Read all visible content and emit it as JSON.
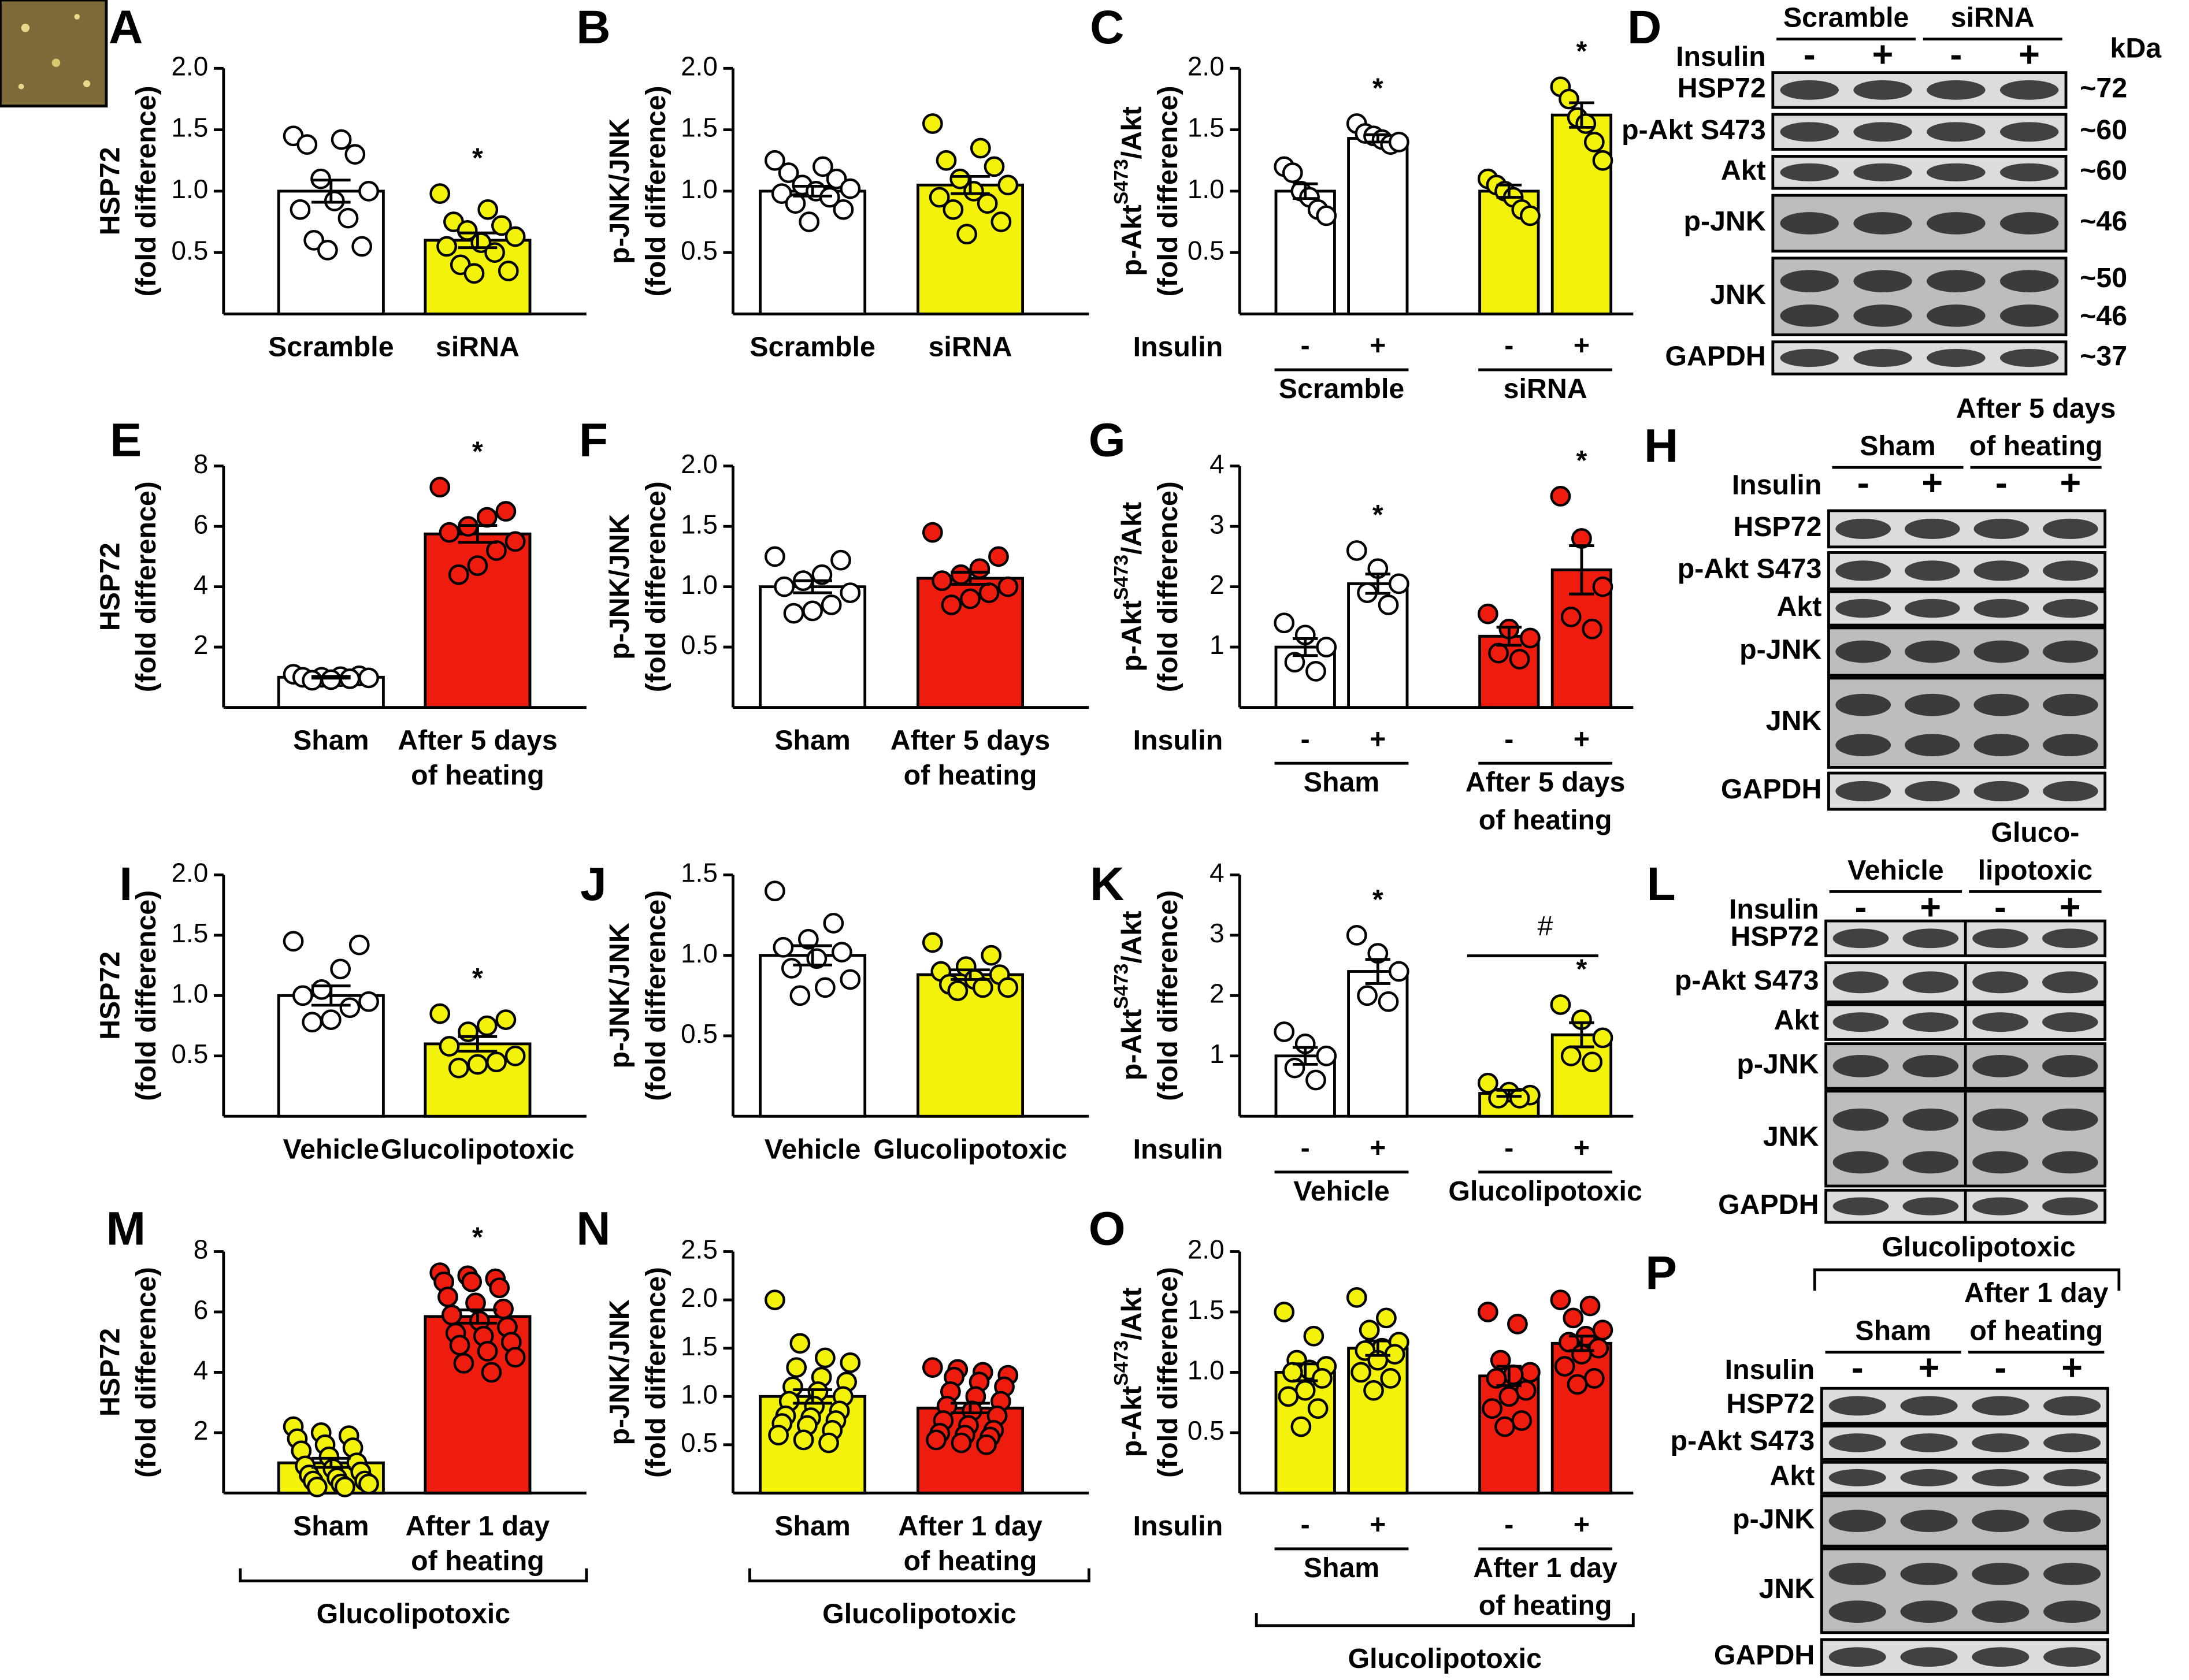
{
  "chart_data": [
    {
      "type": "bar",
      "panel": "A",
      "ylabel": [
        "HSP72",
        "(fold difference)"
      ],
      "ylim": [
        0,
        2
      ],
      "yticks": [
        0.5,
        {
          "value": 1,
          "label": "1.0"
        },
        1.5,
        {
          "value": 2,
          "label": "2.0"
        }
      ],
      "categories": [
        [
          "Scramble"
        ],
        [
          "siRNA"
        ]
      ],
      "bars": [
        {
          "value": 1.0,
          "sem": 0.09,
          "color": "#ffffff",
          "points": [
            1.45,
            1.42,
            1.38,
            1.3,
            1.1,
            1.0,
            0.92,
            0.85,
            0.78,
            0.6,
            0.55,
            0.52
          ]
        },
        {
          "value": 0.6,
          "sem": 0.06,
          "color": "#f2f20a",
          "points": [
            0.98,
            0.85,
            0.75,
            0.72,
            0.68,
            0.63,
            0.58,
            0.55,
            0.5,
            0.4,
            0.35,
            0.33
          ],
          "mark": "*"
        }
      ]
    },
    {
      "type": "bar",
      "panel": "B",
      "ylabel": [
        "p-JNK/JNK",
        "(fold difference)"
      ],
      "ylim": [
        0,
        2
      ],
      "yticks": [
        0.5,
        {
          "value": 1,
          "label": "1.0"
        },
        1.5,
        {
          "value": 2,
          "label": "2.0"
        }
      ],
      "categories": [
        [
          "Scramble"
        ],
        [
          "siRNA"
        ]
      ],
      "bars": [
        {
          "value": 1.0,
          "sem": 0.04,
          "color": "#ffffff",
          "points": [
            1.25,
            1.2,
            1.15,
            1.1,
            1.05,
            1.02,
            1.0,
            0.98,
            0.95,
            0.9,
            0.85,
            0.75
          ]
        },
        {
          "value": 1.05,
          "sem": 0.07,
          "color": "#f2f20a",
          "points": [
            1.55,
            1.35,
            1.25,
            1.2,
            1.1,
            1.05,
            1.0,
            0.95,
            0.9,
            0.85,
            0.75,
            0.65
          ]
        }
      ]
    },
    {
      "type": "bar",
      "panel": "C",
      "ylabel": [
        {
          "text": "p-Akt",
          "sup": "S473",
          "after": "/Akt"
        },
        "(fold difference)"
      ],
      "ylim": [
        0,
        2
      ],
      "yticks": [
        0.5,
        {
          "value": 1,
          "label": "1.0"
        },
        1.5,
        {
          "value": 2,
          "label": "2.0"
        }
      ],
      "insulin_label": "Insulin",
      "insulin": [
        "-",
        "+",
        "-",
        "+"
      ],
      "groups": [
        [
          "Scramble"
        ],
        [
          "siRNA"
        ]
      ],
      "bars": [
        {
          "value": 1.0,
          "sem": 0.06,
          "color": "#ffffff",
          "points": [
            1.2,
            1.15,
            1.0,
            0.95,
            0.85,
            0.8
          ]
        },
        {
          "value": 1.43,
          "sem": 0.03,
          "color": "#ffffff",
          "points": [
            1.55,
            1.47,
            1.45,
            1.42,
            1.38,
            1.4
          ],
          "mark": "*"
        },
        {
          "value": 1.0,
          "sem": 0.05,
          "color": "#f2f20a",
          "points": [
            1.1,
            1.05,
            1.0,
            0.95,
            0.85,
            0.8
          ]
        },
        {
          "value": 1.62,
          "sem": 0.1,
          "color": "#f2f20a",
          "points": [
            1.85,
            1.75,
            1.6,
            1.55,
            1.4,
            1.25
          ],
          "mark": "*"
        }
      ]
    },
    {
      "type": "bar",
      "panel": "E",
      "ylabel": [
        "HSP72",
        "(fold difference)"
      ],
      "ylim": [
        0,
        8
      ],
      "yticks": [
        2,
        4,
        6,
        8
      ],
      "categories": [
        [
          "Sham"
        ],
        [
          "After 5 days",
          "of heating"
        ]
      ],
      "bars": [
        {
          "value": 1.0,
          "sem": 0.03,
          "color": "#ffffff",
          "points": [
            1.1,
            1.05,
            1.02,
            1.0,
            1.0,
            0.98,
            0.95,
            0.92,
            0.9
          ]
        },
        {
          "value": 5.75,
          "sem": 0.28,
          "color": "#ee1c0e",
          "points": [
            7.3,
            6.5,
            6.3,
            6.0,
            5.8,
            5.5,
            5.2,
            4.7,
            4.4
          ],
          "mark": "*"
        }
      ]
    },
    {
      "type": "bar",
      "panel": "F",
      "ylabel": [
        "p-JNK/JNK",
        "(fold difference)"
      ],
      "ylim": [
        0,
        2
      ],
      "yticks": [
        0.5,
        {
          "value": 1,
          "label": "1.0"
        },
        1.5,
        {
          "value": 2,
          "label": "2.0"
        }
      ],
      "categories": [
        [
          "Sham"
        ],
        [
          "After 5 days",
          "of heating"
        ]
      ],
      "bars": [
        {
          "value": 1.0,
          "sem": 0.05,
          "color": "#ffffff",
          "points": [
            1.25,
            1.22,
            1.1,
            1.05,
            1.0,
            0.95,
            0.85,
            0.8,
            0.78
          ]
        },
        {
          "value": 1.07,
          "sem": 0.05,
          "color": "#ee1c0e",
          "points": [
            1.45,
            1.25,
            1.15,
            1.1,
            1.05,
            1.0,
            0.95,
            0.9,
            0.85
          ]
        }
      ]
    },
    {
      "type": "bar",
      "panel": "G",
      "ylabel": [
        {
          "text": "p-Akt",
          "sup": "S473",
          "after": "/Akt"
        },
        "(fold difference)"
      ],
      "ylim": [
        0,
        4
      ],
      "yticks": [
        1,
        2,
        3,
        4
      ],
      "insulin_label": "Insulin",
      "insulin": [
        "-",
        "+",
        "-",
        "+"
      ],
      "groups": [
        [
          "Sham"
        ],
        [
          "After 5 days",
          "of heating"
        ]
      ],
      "bars": [
        {
          "value": 1.0,
          "sem": 0.14,
          "color": "#ffffff",
          "points": [
            1.4,
            1.2,
            1.0,
            0.75,
            0.6
          ]
        },
        {
          "value": 2.05,
          "sem": 0.16,
          "color": "#ffffff",
          "points": [
            2.6,
            2.3,
            2.05,
            1.9,
            1.7
          ],
          "mark": "*"
        },
        {
          "value": 1.18,
          "sem": 0.15,
          "color": "#ee1c0e",
          "points": [
            1.55,
            1.3,
            1.15,
            0.9,
            0.8
          ]
        },
        {
          "value": 2.28,
          "sem": 0.4,
          "color": "#ee1c0e",
          "points": [
            3.5,
            2.8,
            2.0,
            1.5,
            1.3
          ],
          "mark": "*"
        }
      ]
    },
    {
      "type": "bar",
      "panel": "I",
      "ylabel": [
        "HSP72",
        "(fold difference)"
      ],
      "ylim": [
        0,
        2
      ],
      "yticks": [
        0.5,
        {
          "value": 1,
          "label": "1.0"
        },
        1.5,
        {
          "value": 2,
          "label": "2.0"
        }
      ],
      "categories": [
        [
          "Vehicle"
        ],
        [
          "Glucolipotoxic"
        ]
      ],
      "bars": [
        {
          "value": 1.0,
          "sem": 0.08,
          "color": "#ffffff",
          "points": [
            1.45,
            1.42,
            1.22,
            1.05,
            1.0,
            0.95,
            0.9,
            0.8,
            0.78
          ]
        },
        {
          "value": 0.6,
          "sem": 0.06,
          "color": "#f2f20a",
          "points": [
            0.85,
            0.8,
            0.75,
            0.7,
            0.58,
            0.5,
            0.45,
            0.43,
            0.4
          ],
          "mark": "*"
        }
      ]
    },
    {
      "type": "bar",
      "panel": "J",
      "ylabel": [
        "p-JNK/JNK",
        "(fold difference)"
      ],
      "ylim": [
        0,
        1.5
      ],
      "yticks": [
        0.5,
        {
          "value": 1,
          "label": "1.0"
        },
        1.5
      ],
      "categories": [
        [
          "Vehicle"
        ],
        [
          "Glucolipotoxic"
        ]
      ],
      "bars": [
        {
          "value": 1.0,
          "sem": 0.06,
          "color": "#ffffff",
          "points": [
            1.4,
            1.2,
            1.1,
            1.05,
            1.02,
            0.98,
            0.92,
            0.85,
            0.8,
            0.75
          ]
        },
        {
          "value": 0.88,
          "sem": 0.03,
          "color": "#f2f20a",
          "points": [
            1.08,
            1.0,
            0.93,
            0.9,
            0.88,
            0.85,
            0.82,
            0.8,
            0.8,
            0.78
          ]
        }
      ]
    },
    {
      "type": "bar",
      "panel": "K",
      "ylabel": [
        {
          "text": "p-Akt",
          "sup": "S473",
          "after": "/Akt"
        },
        "(fold difference)"
      ],
      "ylim": [
        0,
        4
      ],
      "yticks": [
        1,
        2,
        3,
        4
      ],
      "insulin_label": "Insulin",
      "insulin": [
        "-",
        "+",
        "-",
        "+"
      ],
      "groups": [
        [
          "Vehicle"
        ],
        [
          "Glucolipotoxic"
        ]
      ],
      "comparison": "#",
      "bars": [
        {
          "value": 1.0,
          "sem": 0.14,
          "color": "#ffffff",
          "points": [
            1.4,
            1.2,
            1.0,
            0.8,
            0.6
          ]
        },
        {
          "value": 2.4,
          "sem": 0.2,
          "color": "#ffffff",
          "points": [
            3.0,
            2.7,
            2.4,
            2.0,
            1.9
          ],
          "mark": "*"
        },
        {
          "value": 0.38,
          "sem": 0.05,
          "color": "#f2f20a",
          "points": [
            0.55,
            0.4,
            0.35,
            0.3,
            0.3
          ]
        },
        {
          "value": 1.35,
          "sem": 0.2,
          "color": "#f2f20a",
          "points": [
            1.85,
            1.6,
            1.3,
            1.0,
            0.9
          ],
          "mark": "*"
        }
      ]
    },
    {
      "type": "bar",
      "panel": "M",
      "ylabel": [
        "HSP72",
        "(fold difference)"
      ],
      "ylim": [
        0,
        8
      ],
      "yticks": [
        2,
        4,
        6,
        8
      ],
      "categories": [
        [
          "Sham"
        ],
        [
          "After 1 day",
          "of heating"
        ]
      ],
      "bracket_label": "Glucolipotoxic",
      "bars": [
        {
          "value": 1.0,
          "sem": 0.15,
          "color": "#f2f20a",
          "points": [
            2.2,
            2.0,
            1.9,
            1.8,
            1.6,
            1.5,
            1.4,
            1.2,
            1.0,
            0.9,
            0.8,
            0.7,
            0.6,
            0.5,
            0.4,
            0.4,
            0.3,
            0.3,
            0.2,
            0.2
          ]
        },
        {
          "value": 5.85,
          "sem": 0.22,
          "color": "#ee1c0e",
          "points": [
            7.3,
            7.2,
            7.1,
            7.0,
            7.0,
            6.8,
            6.5,
            6.3,
            6.1,
            5.9,
            5.7,
            5.5,
            5.3,
            5.2,
            5.0,
            4.9,
            4.7,
            4.5,
            4.3,
            4.0
          ],
          "mark": "*"
        }
      ]
    },
    {
      "type": "bar",
      "panel": "N",
      "ylabel": [
        "p-JNK/JNK",
        "(fold difference)"
      ],
      "ylim": [
        0,
        2.5
      ],
      "yticks": [
        0.5,
        {
          "value": 1,
          "label": "1.0"
        },
        1.5,
        {
          "value": 2,
          "label": "2.0"
        },
        2.5
      ],
      "categories": [
        [
          "Sham"
        ],
        [
          "After 1 day",
          "of heating"
        ]
      ],
      "bracket_label": "Glucolipotoxic",
      "bars": [
        {
          "value": 1.0,
          "sem": 0.07,
          "color": "#f2f20a",
          "points": [
            2.0,
            1.55,
            1.4,
            1.35,
            1.3,
            1.2,
            1.15,
            1.1,
            1.05,
            1.0,
            0.95,
            0.9,
            0.85,
            0.8,
            0.78,
            0.75,
            0.72,
            0.7,
            0.65,
            0.6,
            0.55,
            0.52
          ]
        },
        {
          "value": 0.88,
          "sem": 0.05,
          "color": "#ee1c0e",
          "points": [
            1.3,
            1.28,
            1.25,
            1.22,
            1.2,
            1.15,
            1.1,
            1.05,
            1.0,
            0.95,
            0.9,
            0.85,
            0.8,
            0.75,
            0.7,
            0.65,
            0.62,
            0.6,
            0.58,
            0.55,
            0.52,
            0.5
          ]
        }
      ]
    },
    {
      "type": "bar",
      "panel": "O",
      "ylabel": [
        {
          "text": "p-Akt",
          "sup": "S473",
          "after": "/Akt"
        },
        "(fold difference)"
      ],
      "ylim": [
        0,
        2
      ],
      "yticks": [
        0.5,
        {
          "value": 1,
          "label": "1.0"
        },
        1.5,
        {
          "value": 2,
          "label": "2.0"
        }
      ],
      "insulin_label": "Insulin",
      "insulin": [
        "-",
        "+",
        "-",
        "+"
      ],
      "groups": [
        [
          "Sham"
        ],
        [
          "After 1 day",
          "of heating"
        ]
      ],
      "bracket_label": "Glucolipotoxic",
      "bars": [
        {
          "value": 1.0,
          "sem": 0.07,
          "color": "#f2f20a",
          "points": [
            1.5,
            1.3,
            1.1,
            1.05,
            1.02,
            1.0,
            0.95,
            0.85,
            0.8,
            0.7,
            0.55
          ]
        },
        {
          "value": 1.2,
          "sem": 0.06,
          "color": "#f2f20a",
          "points": [
            1.62,
            1.45,
            1.35,
            1.25,
            1.2,
            1.18,
            1.15,
            1.1,
            1.0,
            0.95,
            0.85
          ]
        },
        {
          "value": 0.97,
          "sem": 0.08,
          "color": "#ee1c0e",
          "points": [
            1.5,
            1.4,
            1.1,
            1.0,
            0.98,
            0.95,
            0.85,
            0.8,
            0.7,
            0.6,
            0.55
          ]
        },
        {
          "value": 1.24,
          "sem": 0.06,
          "color": "#ee1c0e",
          "points": [
            1.6,
            1.55,
            1.45,
            1.35,
            1.3,
            1.25,
            1.2,
            1.15,
            1.05,
            0.95,
            0.9
          ]
        }
      ]
    }
  ],
  "blots": [
    {
      "panel": "D",
      "groups": [
        [
          "Scramble"
        ],
        [
          "siRNA"
        ]
      ],
      "kda_header": "kDa",
      "insulin_label": "Insulin",
      "insulin": [
        "-",
        "+",
        "-",
        "+"
      ],
      "rows": [
        {
          "label": "HSP72",
          "kda": [
            "~72"
          ]
        },
        {
          "label": "p-Akt S473",
          "kda": [
            "~60"
          ]
        },
        {
          "label": "Akt",
          "kda": [
            "~60"
          ]
        },
        {
          "label": "p-JNK",
          "kda": [
            "~46"
          ]
        },
        {
          "label": "JNK",
          "kda": [
            "~50",
            "~46"
          ]
        },
        {
          "label": "GAPDH",
          "kda": [
            "~37"
          ]
        }
      ]
    },
    {
      "panel": "H",
      "groups": [
        [
          "Sham"
        ],
        [
          "After 5 days",
          "of heating"
        ]
      ],
      "insulin_label": "Insulin",
      "insulin": [
        "-",
        "+",
        "-",
        "+"
      ],
      "rows": [
        {
          "label": "HSP72"
        },
        {
          "label": "p-Akt S473"
        },
        {
          "label": "Akt"
        },
        {
          "label": "p-JNK"
        },
        {
          "label": "JNK"
        },
        {
          "label": "GAPDH"
        }
      ]
    },
    {
      "panel": "L",
      "groups": [
        [
          "Vehicle"
        ],
        [
          "Gluco-",
          "lipotoxic"
        ]
      ],
      "insulin_label": "Insulin",
      "insulin": [
        "-",
        "+",
        "-",
        "+"
      ],
      "rows": [
        {
          "label": "HSP72"
        },
        {
          "label": "p-Akt S473"
        },
        {
          "label": "Akt"
        },
        {
          "label": "p-JNK"
        },
        {
          "label": "JNK"
        },
        {
          "label": "GAPDH"
        }
      ]
    },
    {
      "panel": "P",
      "title": "Glucolipotoxic",
      "groups": [
        [
          "Sham"
        ],
        [
          "After 1 day",
          "of heating"
        ]
      ],
      "insulin_label": "Insulin",
      "insulin": [
        "-",
        "+",
        "-",
        "+"
      ],
      "rows": [
        {
          "label": "HSP72"
        },
        {
          "label": "p-Akt S473"
        },
        {
          "label": "Akt"
        },
        {
          "label": "p-JNK"
        },
        {
          "label": "JNK"
        },
        {
          "label": "GAPDH"
        }
      ]
    }
  ]
}
